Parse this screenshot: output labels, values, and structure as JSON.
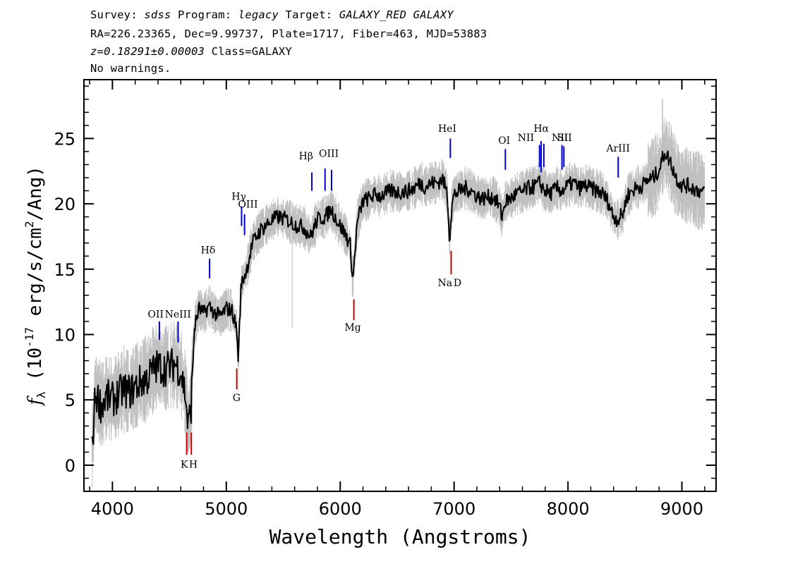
{
  "header": {
    "survey_label": "Survey:",
    "survey": "sdss",
    "program_label": "Program:",
    "program": "legacy",
    "target_label": "Target:",
    "target": "GALAXY_RED GALAXY",
    "coords": "RA=226.23365, Dec=9.99737, Plate=1717, Fiber=463, MJD=53883",
    "redshift": "z=0.18291±0.00003",
    "class_text": "Class=GALAXY",
    "warnings": "No warnings."
  },
  "chart_data": {
    "type": "line",
    "xlabel": "Wavelength (Angstroms)",
    "ylabel": "f_λ (10^-17 erg/s/cm²/Ang)",
    "xlim": [
      3750,
      9300
    ],
    "ylim": [
      -2,
      29.5
    ],
    "xticks": [
      4000,
      5000,
      6000,
      7000,
      8000,
      9000
    ],
    "yticks": [
      0,
      5,
      10,
      15,
      20,
      25
    ],
    "grid": false,
    "series": [
      {
        "role": "flux",
        "color": "#000000",
        "x": [
          3820,
          3850,
          3900,
          3950,
          4000,
          4050,
          4100,
          4150,
          4200,
          4250,
          4300,
          4350,
          4400,
          4450,
          4500,
          4550,
          4600,
          4640,
          4665,
          4690,
          4720,
          4760,
          4800,
          4850,
          4900,
          4950,
          5000,
          5050,
          5090,
          5105,
          5130,
          5180,
          5230,
          5300,
          5380,
          5450,
          5530,
          5600,
          5680,
          5740,
          5800,
          5870,
          5920,
          5980,
          6050,
          6090,
          6110,
          6125,
          6150,
          6200,
          6250,
          6300,
          6350,
          6400,
          6450,
          6500,
          6550,
          6600,
          6650,
          6700,
          6750,
          6800,
          6850,
          6900,
          6940,
          6960,
          6980,
          7000,
          7050,
          7100,
          7150,
          7200,
          7250,
          7300,
          7350,
          7400,
          7420,
          7450,
          7500,
          7550,
          7600,
          7650,
          7700,
          7750,
          7800,
          7850,
          7900,
          7950,
          8000,
          8050,
          8100,
          8150,
          8200,
          8250,
          8300,
          8350,
          8400,
          8440,
          8480,
          8520,
          8560,
          8600,
          8650,
          8700,
          8750,
          8800,
          8850,
          8900,
          8950,
          9000,
          9050,
          9100,
          9150,
          9200
        ],
        "y": [
          1.0,
          5.5,
          4.6,
          5.2,
          5.0,
          5.4,
          5.8,
          5.6,
          6.0,
          6.4,
          6.6,
          7.2,
          7.6,
          7.4,
          7.5,
          7.8,
          7.2,
          5.5,
          2.9,
          4.5,
          10.5,
          12.0,
          11.6,
          12.2,
          11.6,
          11.4,
          12.0,
          11.8,
          10.5,
          8.2,
          13.8,
          15.0,
          17.0,
          18.0,
          18.6,
          19.0,
          18.8,
          18.4,
          18.2,
          17.5,
          18.8,
          19.0,
          19.6,
          18.6,
          17.6,
          16.8,
          14.0,
          15.8,
          18.6,
          20.2,
          20.4,
          20.7,
          20.6,
          20.8,
          21.0,
          20.9,
          20.9,
          21.0,
          21.2,
          21.6,
          21.3,
          21.6,
          21.6,
          21.9,
          20.8,
          17.3,
          19.8,
          20.7,
          21.0,
          21.2,
          21.0,
          20.6,
          20.4,
          20.5,
          20.5,
          19.8,
          19.0,
          20.2,
          20.4,
          20.8,
          20.9,
          21.2,
          21.3,
          21.6,
          21.0,
          20.8,
          21.2,
          21.0,
          21.4,
          21.6,
          21.2,
          21.4,
          21.2,
          21.0,
          20.8,
          20.2,
          19.0,
          18.8,
          19.2,
          20.6,
          21.0,
          21.2,
          21.4,
          21.8,
          22.0,
          22.6,
          24.0,
          23.2,
          22.0,
          21.4,
          21.4,
          21.2,
          21.0,
          20.8
        ]
      }
    ],
    "lines": [
      {
        "label": "OII",
        "x": 4412,
        "y0": 9.6,
        "y1": 11.0,
        "color": "#0000cc",
        "kind": "emission"
      },
      {
        "label": "NeIII",
        "x": 4577,
        "y0": 9.4,
        "y1": 11.0,
        "color": "#0000cc",
        "kind": "emission"
      },
      {
        "label": "Hδ",
        "x": 4853,
        "y0": 14.3,
        "y1": 15.8,
        "color": "#0000cc",
        "kind": "emission"
      },
      {
        "label": "Hγ",
        "x": 5134,
        "y0": 18.3,
        "y1": 19.8,
        "color": "#0000cc",
        "kind": "emission"
      },
      {
        "label": "OIII",
        "x": 5160,
        "y0": 17.6,
        "y1": 19.2,
        "color": "#0000cc",
        "kind": "emission"
      },
      {
        "label": "Hβ",
        "x": 5751,
        "y0": 21.0,
        "y1": 22.4,
        "color": "#0000cc",
        "kind": "emission"
      },
      {
        "label": "OIII",
        "x": 5867,
        "y0": 21.0,
        "y1": 22.7,
        "color": "#0000cc",
        "kind": "emission"
      },
      {
        "label": "OIII",
        "x": 5924,
        "y0": 21.0,
        "y1": 22.6,
        "color": "#0000cc",
        "kind": "emission"
      },
      {
        "label": "HeI",
        "x": 6967,
        "y0": 23.5,
        "y1": 25.0,
        "color": "#0000cc",
        "kind": "emission"
      },
      {
        "label": "OI",
        "x": 7450,
        "y0": 22.6,
        "y1": 24.2,
        "color": "#0000cc",
        "kind": "emission"
      },
      {
        "label": "NII",
        "x": 7750,
        "y0": 22.8,
        "y1": 24.5,
        "color": "#0000cc",
        "kind": "emission"
      },
      {
        "label": "Hα",
        "x": 7764,
        "y0": 22.4,
        "y1": 24.8,
        "color": "#0000cc",
        "kind": "emission"
      },
      {
        "label": "NII",
        "x": 7788,
        "y0": 22.8,
        "y1": 24.6,
        "color": "#0000cc",
        "kind": "emission"
      },
      {
        "label": "SII",
        "x": 7947,
        "y0": 22.6,
        "y1": 24.5,
        "color": "#0000cc",
        "kind": "emission"
      },
      {
        "label": "SII",
        "x": 7964,
        "y0": 22.8,
        "y1": 24.4,
        "color": "#0000cc",
        "kind": "emission"
      },
      {
        "label": "ArIII",
        "x": 8441,
        "y0": 22.0,
        "y1": 23.6,
        "color": "#0000cc",
        "kind": "emission"
      },
      {
        "label": "K",
        "x": 4652,
        "y0": 0.8,
        "y1": 2.5,
        "color": "#cc0000",
        "kind": "absorption"
      },
      {
        "label": "H",
        "x": 4693,
        "y0": 0.8,
        "y1": 2.5,
        "color": "#cc0000",
        "kind": "absorption"
      },
      {
        "label": "G",
        "x": 5092,
        "y0": 5.8,
        "y1": 7.4,
        "color": "#cc0000",
        "kind": "absorption"
      },
      {
        "label": "Mg",
        "x": 6120,
        "y0": 11.1,
        "y1": 12.7,
        "color": "#cc0000",
        "kind": "absorption"
      },
      {
        "label": "Na D",
        "x": 6974,
        "y0": 14.6,
        "y1": 16.4,
        "color": "#cc0000",
        "kind": "absorption"
      }
    ],
    "line_labels": [
      {
        "text": "OII",
        "x": 4380,
        "y": 11.3,
        "anchor": "middle"
      },
      {
        "text": "NeIII",
        "x": 4575,
        "y": 11.3,
        "anchor": "middle"
      },
      {
        "text": "Hδ",
        "x": 4840,
        "y": 16.2,
        "anchor": "middle"
      },
      {
        "text": "Hγ",
        "x": 5110,
        "y": 20.3,
        "anchor": "middle"
      },
      {
        "text": "OIII",
        "x": 5190,
        "y": 19.7,
        "anchor": "middle"
      },
      {
        "text": "Hβ",
        "x": 5700,
        "y": 23.4,
        "anchor": "middle"
      },
      {
        "text": "OIII",
        "x": 5900,
        "y": 23.6,
        "anchor": "middle"
      },
      {
        "text": "HeI",
        "x": 6940,
        "y": 25.5,
        "anchor": "middle"
      },
      {
        "text": "OI",
        "x": 7440,
        "y": 24.6,
        "anchor": "middle"
      },
      {
        "text": "NII",
        "x": 7630,
        "y": 24.8,
        "anchor": "middle"
      },
      {
        "text": "Hα",
        "x": 7765,
        "y": 25.5,
        "anchor": "middle"
      },
      {
        "text": "NII",
        "x": 7930,
        "y": 24.8,
        "anchor": "middle"
      },
      {
        "text": "SII",
        "x": 7970,
        "y": 24.8,
        "anchor": "middle"
      },
      {
        "text": "ArIII",
        "x": 8440,
        "y": 24.0,
        "anchor": "middle"
      },
      {
        "text": "K",
        "x": 4630,
        "y": -0.2,
        "anchor": "middle"
      },
      {
        "text": "H",
        "x": 4710,
        "y": -0.2,
        "anchor": "middle"
      },
      {
        "text": "G",
        "x": 5090,
        "y": 4.9,
        "anchor": "middle"
      },
      {
        "text": "Mg",
        "x": 6110,
        "y": 10.3,
        "anchor": "middle"
      },
      {
        "text": "Na",
        "x": 6920,
        "y": 13.7,
        "anchor": "middle"
      },
      {
        "text": "D",
        "x": 7030,
        "y": 13.7,
        "anchor": "middle"
      }
    ],
    "noise_color": "#c0c0c0",
    "frame_color": "#000000"
  }
}
